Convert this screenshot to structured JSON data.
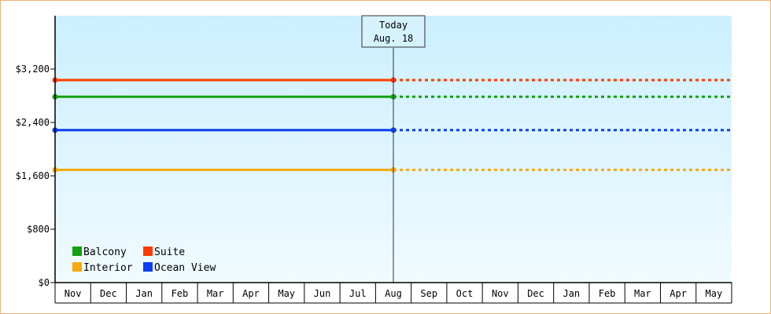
{
  "chart_data": {
    "type": "line",
    "title": "",
    "xlabel": "",
    "ylabel": "",
    "ylim": [
      0,
      4000
    ],
    "yticks": [
      0,
      800,
      1600,
      2400,
      3200
    ],
    "ytick_labels": [
      "$0",
      "$800",
      "$1,600",
      "$2,400",
      "$3,200"
    ],
    "categories": [
      "Nov",
      "Dec",
      "Jan",
      "Feb",
      "Mar",
      "Apr",
      "May",
      "Jun",
      "Jul",
      "Aug",
      "Sep",
      "Oct",
      "Nov",
      "Dec",
      "Jan",
      "Feb",
      "Mar",
      "Apr",
      "May"
    ],
    "today": {
      "line1": "Today",
      "line2": "Aug. 18",
      "category_index": 9
    },
    "series": [
      {
        "name": "Suite",
        "color": "#ff3a00",
        "value": 3035
      },
      {
        "name": "Balcony",
        "color": "#13a10e",
        "value": 2785
      },
      {
        "name": "Ocean View",
        "color": "#0c3ef5",
        "value": 2285
      },
      {
        "name": "Interior",
        "color": "#f5a80f",
        "value": 1690
      }
    ],
    "legend": [
      {
        "name": "Balcony",
        "color": "#13a10e"
      },
      {
        "name": "Suite",
        "color": "#ff3a00"
      },
      {
        "name": "Interior",
        "color": "#f5a80f"
      },
      {
        "name": "Ocean View",
        "color": "#0c3ef5"
      }
    ],
    "legend_placement": "bottom-left",
    "grid": false
  }
}
